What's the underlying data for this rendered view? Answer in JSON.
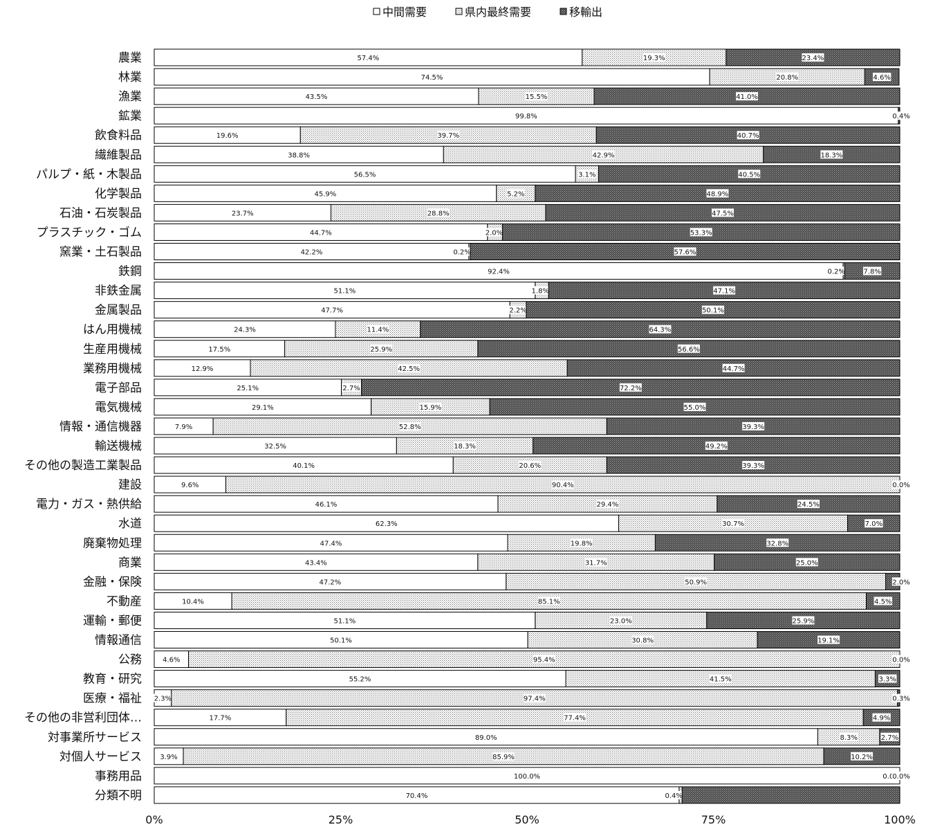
{
  "chart_data": {
    "type": "bar",
    "orientation": "horizontal",
    "stacked": "percent",
    "xlim": [
      0,
      100
    ],
    "x_ticks": [
      "0%",
      "25%",
      "50%",
      "75%",
      "100%"
    ],
    "legend_position": "top",
    "colors": {
      "中間需要": "#ffffff",
      "県内最終需要": "#d8d8d8",
      "移輸出": "#4a4a4a"
    },
    "categories": [
      "農業",
      "林業",
      "漁業",
      "鉱業",
      "飲食料品",
      "繊維製品",
      "パルプ・紙・木製品",
      "化学製品",
      "石油・石炭製品",
      "プラスチック・ゴム",
      "窯業・土石製品",
      "鉄鋼",
      "非鉄金属",
      "金属製品",
      "はん用機械",
      "生産用機械",
      "業務用機械",
      "電子部品",
      "電気機械",
      "情報・通信機器",
      "輸送機械",
      "その他の製造工業製品",
      "建設",
      "電力・ガス・熱供給",
      "水道",
      "廃棄物処理",
      "商業",
      "金融・保険",
      "不動産",
      "運輸・郵便",
      "情報通信",
      "公務",
      "教育・研究",
      "医療・福祉",
      "その他の非営利団体…",
      "対事業所サービス",
      "対個人サービス",
      "事務用品",
      "分類不明"
    ],
    "series": [
      {
        "name": "中間需要",
        "values": [
          57.4,
          74.5,
          43.5,
          99.8,
          19.6,
          38.8,
          56.5,
          45.9,
          23.7,
          44.7,
          42.2,
          92.4,
          51.1,
          47.7,
          24.3,
          17.5,
          12.9,
          25.1,
          29.1,
          7.9,
          32.5,
          40.1,
          9.6,
          46.1,
          62.3,
          47.4,
          43.4,
          47.2,
          10.4,
          51.1,
          50.1,
          4.6,
          55.2,
          2.3,
          17.7,
          89.0,
          3.9,
          100.0,
          70.4
        ],
        "labels": [
          "57.4%",
          "74.5%",
          "43.5%",
          "99.8%",
          "19.6%",
          "38.8%",
          "56.5%",
          "45.9%",
          "23.7%",
          "44.7%",
          "42.2%",
          "92.4%",
          "51.1%",
          "47.7%",
          "24.3%",
          "17.5%",
          "12.9%",
          "25.1%",
          "29.1%",
          "7.9%",
          "32.5%",
          "40.1%",
          "9.6%",
          "46.1%",
          "62.3%",
          "47.4%",
          "43.4%",
          "47.2%",
          "10.4%",
          "51.1%",
          "50.1%",
          "4.6%",
          "55.2%",
          "2.3%",
          "17.7%",
          "89.0%",
          "3.9%",
          "100.0%",
          "70.4%"
        ]
      },
      {
        "name": "県内最終需要",
        "values": [
          19.3,
          20.8,
          15.5,
          0.0,
          39.7,
          42.9,
          3.1,
          5.2,
          28.8,
          2.0,
          0.2,
          0.2,
          1.8,
          2.2,
          11.4,
          25.9,
          42.5,
          2.7,
          15.9,
          52.8,
          18.3,
          20.6,
          90.4,
          29.4,
          30.7,
          19.8,
          31.7,
          50.9,
          85.1,
          23.0,
          30.8,
          95.4,
          41.5,
          97.4,
          77.4,
          8.3,
          85.9,
          0.0,
          0.4
        ],
        "labels": [
          "19.3%",
          "20.8%",
          "15.5%",
          "",
          "39.7%",
          "42.9%",
          "3.1%",
          "5.2%",
          "28.8%",
          "2.0%",
          "0.2%",
          "0.2%",
          "1.8%",
          "2.2%",
          "11.4%",
          "25.9%",
          "42.5%",
          "2.7%",
          "15.9%",
          "52.8%",
          "18.3%",
          "20.6%",
          "90.4%",
          "29.4%",
          "30.7%",
          "19.8%",
          "31.7%",
          "50.9%",
          "85.1%",
          "23.0%",
          "30.8%",
          "95.4%",
          "41.5%",
          "97.4%",
          "77.4%",
          "8.3%",
          "85.9%",
          "0.0%",
          "0.4%"
        ]
      },
      {
        "name": "移輸出",
        "values": [
          23.4,
          4.6,
          41.0,
          0.4,
          40.7,
          18.3,
          40.5,
          48.9,
          47.5,
          53.3,
          57.6,
          7.8,
          47.1,
          50.1,
          64.3,
          56.6,
          44.7,
          72.2,
          55.0,
          39.3,
          49.2,
          39.3,
          0.0,
          24.5,
          7.0,
          32.8,
          25.0,
          2.0,
          4.5,
          25.9,
          19.1,
          0.0,
          3.3,
          0.3,
          4.9,
          2.7,
          10.2,
          0.0,
          29.2
        ],
        "labels": [
          "23.4%",
          "4.6%",
          "41.0%",
          "0.4%",
          "40.7%",
          "18.3%",
          "40.5%",
          "48.9%",
          "47.5%",
          "53.3%",
          "57.6%",
          "7.8%",
          "47.1%",
          "50.1%",
          "64.3%",
          "56.6%",
          "44.7%",
          "72.2%",
          "55.0%",
          "39.3%",
          "49.2%",
          "39.3%",
          "0.0%",
          "24.5%",
          "7.0%",
          "32.8%",
          "25.0%",
          "2.0%",
          "4.5%",
          "25.9%",
          "19.1%",
          "0.0%",
          "3.3%",
          "0.3%",
          "4.9%",
          "2.7%",
          "10.2%",
          "0.0%",
          ""
        ]
      }
    ]
  }
}
